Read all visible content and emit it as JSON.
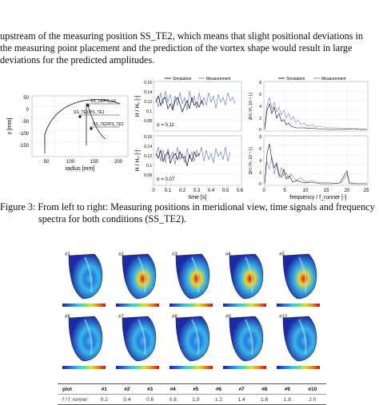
{
  "paragraph": {
    "lines": [
      "upstream of the measuring position SS_TE2, which means that slight positional deviations in",
      "the measuring point placement and the prediction of the vortex shape would result in large",
      "deviations for the predicted amplitudes."
    ]
  },
  "figure3": {
    "meridional": {
      "ylabel": "z [mm]",
      "xlabel": "radius [mm]",
      "y_ticks": [
        "50",
        "0",
        "-50",
        "-100",
        "-150"
      ],
      "x_ticks": [
        "50",
        "100",
        "150",
        "200"
      ],
      "points": [
        "SS_LE/PS_LE",
        "SS_TE1/PS_TE1",
        "SS_TE2/PS_TE2"
      ]
    },
    "time_signals": {
      "legend": [
        "Simulation",
        "Measurement"
      ],
      "ylabel_top": "H / H₀ [-]",
      "ylabel_bottom": "H / H₀ [-]",
      "sigma_top": "σ = 0.11",
      "sigma_bottom": "σ = 0.07",
      "y_ticks_top": [
        "0.16",
        "0.14",
        "0.12",
        "0.1",
        "0.08"
      ],
      "y_ticks_bottom": [
        "0.16",
        "0.14",
        "0.12",
        "0.1",
        "0.08"
      ],
      "x_ticks": [
        "0",
        "0.1",
        "0.2",
        "0.3",
        "0.4",
        "0.5",
        "0.6"
      ],
      "xlabel": "time [s]"
    },
    "spectra": {
      "legend": [
        "Simulation",
        "Measurement"
      ],
      "ylabel_top": "ΔH / H₀·10⁻³ [-]",
      "ylabel_bottom": "ΔH / H₀·10⁻³ [-]",
      "y_ticks_top": [
        "8",
        "6",
        "4",
        "2",
        "0"
      ],
      "y_ticks_bottom": [
        "8",
        "6",
        "4",
        "2",
        "0"
      ],
      "x_ticks": [
        "0",
        "5",
        "10",
        "15",
        "20",
        "25"
      ],
      "xlabel": "frequency / f_runner [-]"
    },
    "caption_line1": "Figure 3:  From left to right: Measuring positions in meridional view, time signals and frequency",
    "caption_line2": "spectra for both conditions (SS_TE2)."
  },
  "figure4": {
    "panels": [
      "#1",
      "#2",
      "#3",
      "#4",
      "#5",
      "#6",
      "#7",
      "#8",
      "#9",
      "#10"
    ],
    "table": {
      "row1_label": "plot",
      "row1": [
        "#1",
        "#2",
        "#3",
        "#4",
        "#5",
        "#6",
        "#7",
        "#8",
        "#9",
        "#10"
      ],
      "row2_label": "f / f_runner",
      "row2": [
        "0.2",
        "0.4",
        "0.6",
        "0.8",
        "1.0",
        "1.2",
        "1.4",
        "1.6",
        "1.8",
        "2.0"
      ]
    }
  }
}
